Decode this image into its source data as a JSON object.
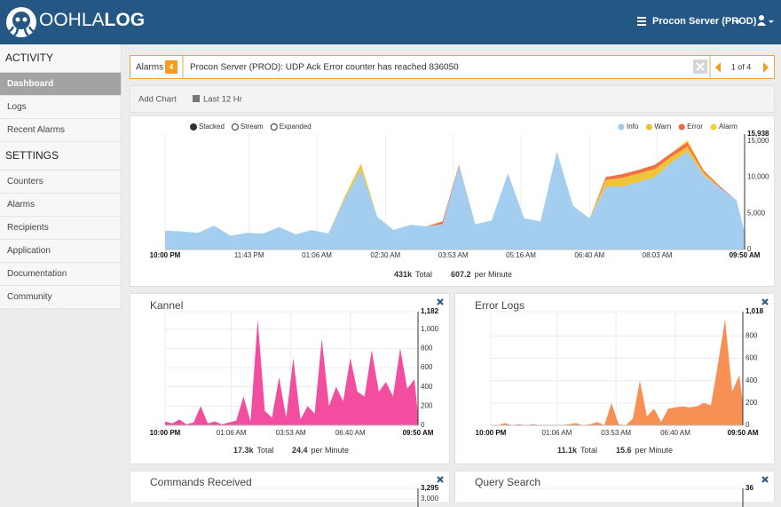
{
  "header": {
    "brand_a": "OOHLA",
    "brand_b": "LOG",
    "server": "Procon Server (PROD)"
  },
  "sidebar": {
    "sections": [
      {
        "title": "ACTIVITY",
        "items": [
          "Dashboard",
          "Logs",
          "Recent Alarms"
        ]
      },
      {
        "title": "SETTINGS",
        "items": [
          "Counters",
          "Alarms",
          "Recipients",
          "Application",
          "Documentation",
          "Community"
        ]
      }
    ]
  },
  "alarm": {
    "label": "Alarms",
    "count": 4,
    "message": "Procon Server (PROD): UDP Ack Error counter has reached 836050",
    "pager": "1 of 4"
  },
  "toolbar": {
    "add": "Add Chart",
    "range": "Last 12 Hr"
  },
  "charts": [
    {
      "type": "area",
      "stacked": true,
      "modes": [
        "Stacked",
        "Stream",
        "Expanded"
      ],
      "legend": "top-right",
      "xgrid": true,
      "ygrid": false,
      "xlim": [
        0,
        710
      ],
      "xticks": [
        {
          "value": 0,
          "label": "10:00 PM"
        },
        {
          "value": 103,
          "label": "11:43 PM"
        },
        {
          "value": 186,
          "label": "01:06 AM"
        },
        {
          "value": 270,
          "label": "02:30 AM"
        },
        {
          "value": 353,
          "label": "03:53 AM"
        },
        {
          "value": 436,
          "label": "05:16 AM"
        },
        {
          "value": 520,
          "label": "06:40 AM"
        },
        {
          "value": 603,
          "label": "08:03 AM"
        },
        {
          "value": 710,
          "label": "09:50 AM"
        }
      ],
      "ylim": [
        0,
        15938
      ],
      "yticks": [
        0,
        {
          "value": 5000,
          "label": "5,000"
        },
        {
          "value": 10000,
          "label": "10,000"
        },
        {
          "value": 15000,
          "label": "15,000"
        },
        {
          "value": 15938,
          "label": "15,938"
        }
      ],
      "x": [
        0,
        20,
        40,
        60,
        80,
        100,
        120,
        140,
        160,
        180,
        200,
        220,
        240,
        260,
        280,
        300,
        320,
        340,
        360,
        380,
        400,
        420,
        440,
        460,
        480,
        500,
        520,
        540,
        560,
        580,
        600,
        620,
        640,
        660,
        680,
        700,
        710
      ],
      "series": [
        {
          "name": "Info",
          "color": "#9fcbef",
          "values": [
            2600,
            2500,
            2300,
            3300,
            1900,
            2300,
            2200,
            3100,
            2100,
            2700,
            2200,
            7000,
            11000,
            4500,
            2700,
            3400,
            3200,
            3500,
            11500,
            3500,
            4000,
            10500,
            4300,
            3900,
            13500,
            6000,
            4300,
            8700,
            8700,
            9300,
            10000,
            12000,
            13500,
            10200,
            8500,
            6800,
            2400
          ]
        },
        {
          "name": "Warn",
          "color": "#efc12f",
          "values": [
            0,
            0,
            0,
            0,
            0,
            0,
            0,
            0,
            0,
            0,
            0,
            300,
            700,
            0,
            0,
            0,
            0,
            0,
            0,
            0,
            0,
            0,
            0,
            0,
            0,
            0,
            0,
            900,
            1200,
            1200,
            1100,
            800,
            700,
            400,
            0,
            0,
            0
          ]
        },
        {
          "name": "Error",
          "color": "#ef6a3a",
          "values": [
            0,
            0,
            0,
            0,
            0,
            0,
            0,
            0,
            0,
            0,
            0,
            0,
            0,
            0,
            0,
            0,
            0,
            400,
            200,
            0,
            0,
            0,
            0,
            0,
            0,
            0,
            0,
            400,
            500,
            500,
            600,
            500,
            600,
            300,
            200,
            0,
            0
          ]
        },
        {
          "name": "Alarm",
          "color": "#f3d036",
          "values": [
            0,
            0,
            0,
            0,
            0,
            0,
            0,
            0,
            0,
            0,
            0,
            0,
            200,
            0,
            0,
            0,
            0,
            0,
            0,
            0,
            0,
            0,
            0,
            0,
            0,
            0,
            0,
            0,
            0,
            0,
            0,
            0,
            300,
            0,
            0,
            0,
            0
          ]
        }
      ],
      "total": "431k",
      "total_label": "Total",
      "rate": 607.2,
      "rate_label": "per Minute"
    },
    {
      "type": "area",
      "title": "Kannel",
      "xgrid": true,
      "ygrid": true,
      "color": "#f2439b",
      "xlim": [
        0,
        710
      ],
      "xticks": [
        {
          "value": 0,
          "label": "10:00 PM"
        },
        {
          "value": 186,
          "label": "01:06 AM"
        },
        {
          "value": 353,
          "label": "03:53 AM"
        },
        {
          "value": 520,
          "label": "06:40 AM"
        },
        {
          "value": 710,
          "label": "09:50 AM"
        }
      ],
      "ylim": [
        0,
        1182
      ],
      "yticks": [
        0,
        200,
        400,
        600,
        800,
        {
          "value": 1000,
          "label": "1,000"
        },
        {
          "value": 1182,
          "label": "1,182"
        }
      ],
      "x": [
        0,
        20,
        40,
        60,
        80,
        100,
        120,
        140,
        160,
        180,
        200,
        220,
        240,
        260,
        280,
        300,
        320,
        340,
        360,
        380,
        400,
        420,
        440,
        460,
        480,
        500,
        520,
        540,
        560,
        580,
        600,
        620,
        640,
        660,
        680,
        700,
        710
      ],
      "values": [
        40,
        20,
        60,
        10,
        30,
        200,
        20,
        40,
        10,
        30,
        50,
        300,
        40,
        1100,
        150,
        80,
        500,
        80,
        700,
        60,
        200,
        120,
        900,
        200,
        400,
        250,
        700,
        350,
        300,
        780,
        350,
        450,
        300,
        800,
        380,
        480,
        100
      ],
      "total": "17.3k",
      "total_label": "Total",
      "rate": 24.4,
      "rate_label": "per Minute"
    },
    {
      "type": "area",
      "title": "Error Logs",
      "xgrid": true,
      "ygrid": true,
      "color": "#f8894a",
      "xlim": [
        0,
        710
      ],
      "xticks": [
        {
          "value": 0,
          "label": "10:00 PM"
        },
        {
          "value": 186,
          "label": "01:06 AM"
        },
        {
          "value": 353,
          "label": "03:53 AM"
        },
        {
          "value": 520,
          "label": "06:40 AM"
        },
        {
          "value": 710,
          "label": "09:50 AM"
        }
      ],
      "ylim": [
        0,
        1018
      ],
      "yticks": [
        0,
        200,
        400,
        600,
        800,
        {
          "value": 1018,
          "label": "1,018"
        }
      ],
      "x": [
        0,
        20,
        40,
        60,
        80,
        100,
        120,
        140,
        160,
        180,
        200,
        220,
        240,
        260,
        280,
        300,
        320,
        340,
        360,
        380,
        400,
        420,
        440,
        460,
        480,
        500,
        520,
        540,
        560,
        580,
        600,
        620,
        640,
        660,
        680,
        700,
        710
      ],
      "values": [
        0,
        0,
        20,
        0,
        10,
        0,
        10,
        0,
        0,
        0,
        0,
        10,
        20,
        0,
        10,
        30,
        0,
        200,
        10,
        0,
        60,
        400,
        80,
        150,
        30,
        150,
        160,
        170,
        160,
        170,
        200,
        180,
        550,
        950,
        300,
        450,
        200
      ],
      "total": "11.1k",
      "total_label": "Total",
      "rate": 15.6,
      "rate_label": "per Minute"
    },
    {
      "type": "area",
      "title": "Commands Received",
      "xgrid": true,
      "ygrid": true,
      "ylim": [
        0,
        3295
      ],
      "yticks": [
        {
          "value": 3000,
          "label": "3,000"
        },
        {
          "value": 3295,
          "label": "3,295"
        }
      ]
    },
    {
      "type": "area",
      "title": "Query Search",
      "xgrid": true,
      "ygrid": true,
      "ylim": [
        0,
        36
      ],
      "yticks": [
        36
      ]
    }
  ]
}
